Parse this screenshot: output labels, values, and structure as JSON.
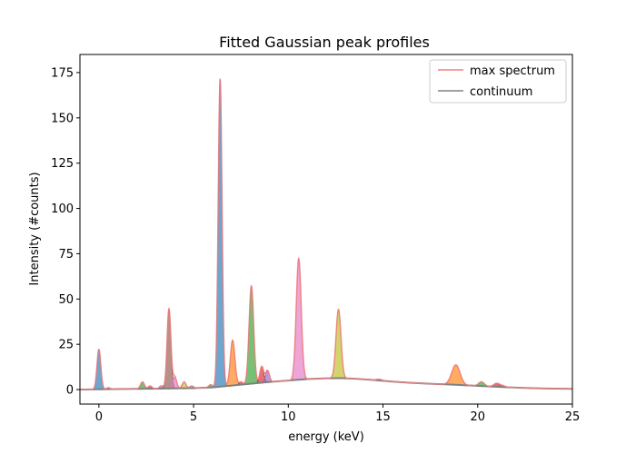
{
  "chart_data": {
    "type": "area",
    "title": "Fitted Gaussian peak profiles",
    "xlabel": "energy (keV)",
    "ylabel": "Intensity (#counts)",
    "xlim": [
      -1,
      25
    ],
    "ylim": [
      -8,
      185
    ],
    "x_ticks": [
      0,
      5,
      10,
      15,
      20,
      25
    ],
    "y_ticks": [
      0,
      25,
      50,
      75,
      100,
      125,
      150,
      175
    ],
    "grid": false,
    "legend_position": "top-right",
    "legend": [
      {
        "label": "max spectrum",
        "color": "#f08080"
      },
      {
        "label": "continuum",
        "color": "#808080"
      }
    ],
    "continuum": {
      "color": "#808080",
      "points": [
        [
          -1,
          0
        ],
        [
          1,
          0.3
        ],
        [
          3,
          0.5
        ],
        [
          5,
          0.8
        ],
        [
          6,
          1.2
        ],
        [
          7,
          2.2
        ],
        [
          8,
          3.2
        ],
        [
          9,
          4.2
        ],
        [
          10,
          5.0
        ],
        [
          11,
          5.8
        ],
        [
          12,
          6.2
        ],
        [
          12.8,
          6.3
        ],
        [
          13.5,
          6.0
        ],
        [
          14.5,
          5.3
        ],
        [
          15.5,
          4.4
        ],
        [
          16.5,
          3.7
        ],
        [
          17.5,
          3.2
        ],
        [
          18.5,
          2.8
        ],
        [
          19.5,
          2.3
        ],
        [
          20.5,
          1.8
        ],
        [
          21.5,
          1.3
        ],
        [
          22.5,
          0.9
        ],
        [
          23.5,
          0.6
        ],
        [
          25,
          0.4
        ]
      ]
    },
    "peaks": [
      {
        "energy": 0.0,
        "height": 22,
        "width": 0.1,
        "color": "#1f77b4"
      },
      {
        "energy": 0.5,
        "height": 0.8,
        "width": 0.1,
        "color": "#ff7f0e"
      },
      {
        "energy": 2.3,
        "height": 3.8,
        "width": 0.1,
        "color": "#2ca02c"
      },
      {
        "energy": 2.7,
        "height": 1.5,
        "width": 0.1,
        "color": "#d62728"
      },
      {
        "energy": 3.3,
        "height": 1.5,
        "width": 0.1,
        "color": "#9467bd"
      },
      {
        "energy": 3.7,
        "height": 44,
        "width": 0.1,
        "color": "#8c564b"
      },
      {
        "energy": 4.0,
        "height": 6.5,
        "width": 0.1,
        "color": "#e377c2"
      },
      {
        "energy": 4.5,
        "height": 3.5,
        "width": 0.1,
        "color": "#bcbd22"
      },
      {
        "energy": 4.9,
        "height": 1.2,
        "width": 0.1,
        "color": "#17becf"
      },
      {
        "energy": 5.9,
        "height": 1.5,
        "width": 0.1,
        "color": "#2ca02c"
      },
      {
        "energy": 6.4,
        "height": 170,
        "width": 0.1,
        "color": "#1f77b4"
      },
      {
        "energy": 7.06,
        "height": 25,
        "width": 0.12,
        "color": "#ff7f0e"
      },
      {
        "energy": 7.5,
        "height": 1.5,
        "width": 0.1,
        "color": "#d62728"
      },
      {
        "energy": 8.05,
        "height": 54,
        "width": 0.12,
        "color": "#2ca02c"
      },
      {
        "energy": 8.6,
        "height": 9,
        "width": 0.1,
        "color": "#d62728"
      },
      {
        "energy": 8.9,
        "height": 6.5,
        "width": 0.1,
        "color": "#9467bd"
      },
      {
        "energy": 10.55,
        "height": 67,
        "width": 0.13,
        "color": "#e377c2"
      },
      {
        "energy": 12.65,
        "height": 38,
        "width": 0.13,
        "color": "#bcbd22"
      },
      {
        "energy": 14.8,
        "height": 0.7,
        "width": 0.15,
        "color": "#17becf"
      },
      {
        "energy": 18.85,
        "height": 11,
        "width": 0.22,
        "color": "#ff7f0e"
      },
      {
        "energy": 20.2,
        "height": 2.3,
        "width": 0.15,
        "color": "#2ca02c"
      },
      {
        "energy": 21.0,
        "height": 1.8,
        "width": 0.15,
        "color": "#d62728"
      },
      {
        "energy": 21.3,
        "height": 0.8,
        "width": 0.15,
        "color": "#9467bd"
      }
    ],
    "max_spectrum": {
      "color": "#f08080"
    }
  }
}
